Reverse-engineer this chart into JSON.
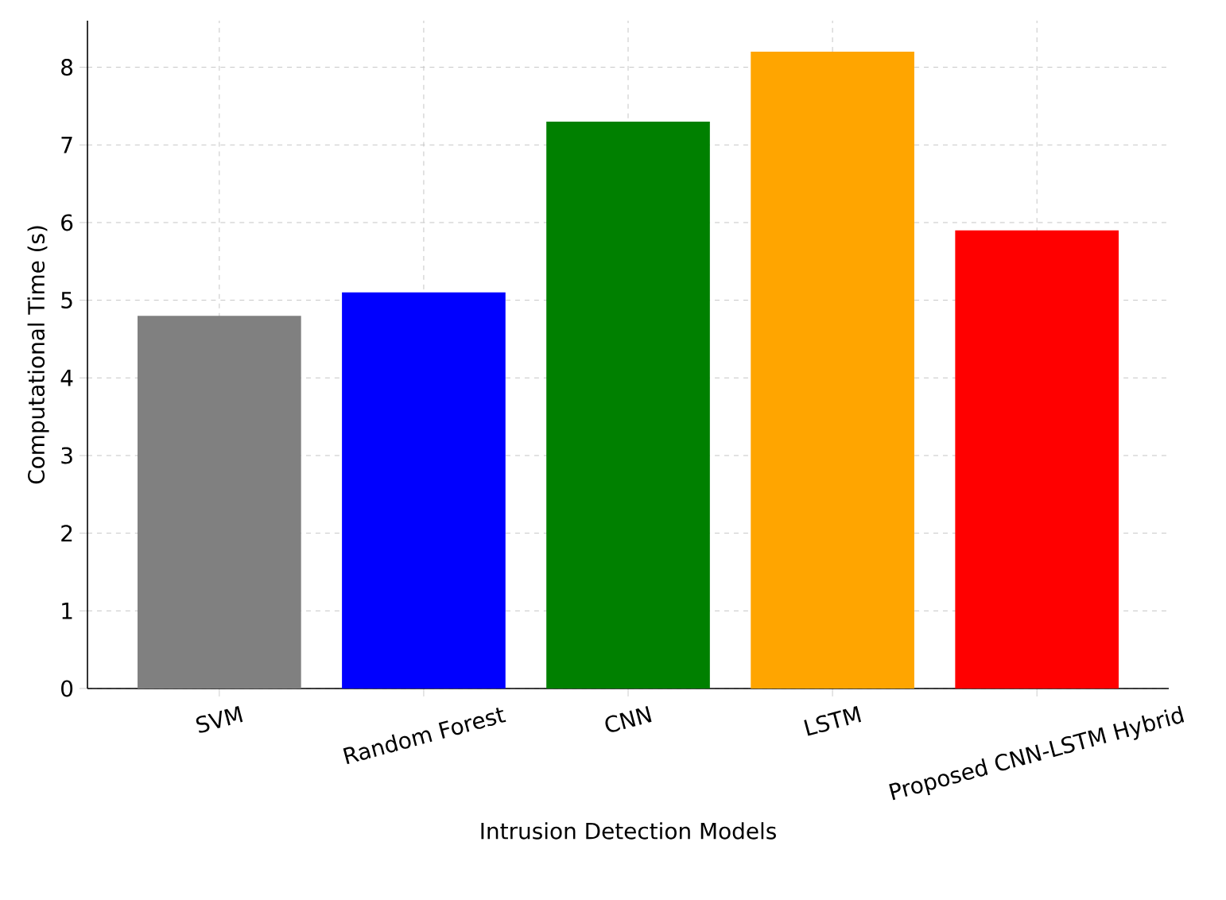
{
  "chart_data": {
    "type": "bar",
    "xlabel": "Intrusion Detection Models",
    "ylabel": "Computational Time (s)",
    "categories": [
      "SVM",
      "Random Forest",
      "CNN",
      "LSTM",
      "Proposed CNN-LSTM Hybrid"
    ],
    "values": [
      4.8,
      5.1,
      7.3,
      8.2,
      5.9
    ],
    "colors": [
      "#808080",
      "#0000ff",
      "#008000",
      "#ffa500",
      "#ff0000"
    ],
    "ylim": [
      0,
      8.6
    ],
    "yticks": [
      0,
      1,
      2,
      3,
      4,
      5,
      6,
      7,
      8
    ],
    "grid": true
  }
}
